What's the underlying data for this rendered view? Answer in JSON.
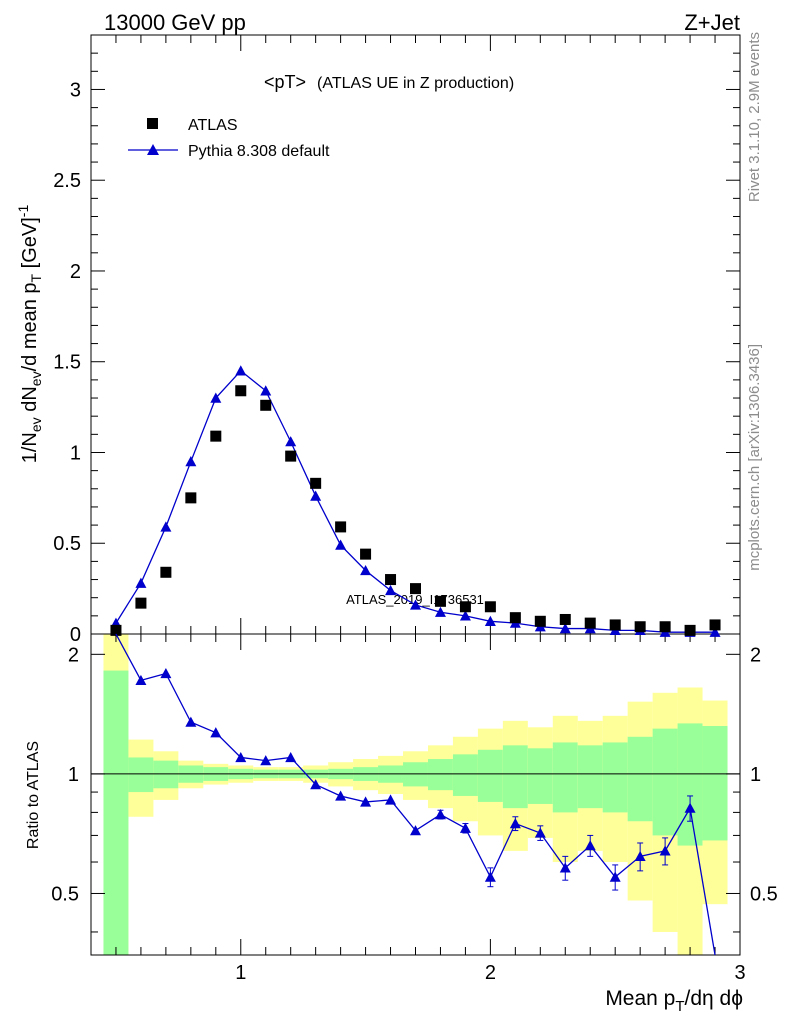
{
  "header": {
    "left": "13000 GeV pp",
    "right": "Z+Jet"
  },
  "plot_title": "<pT>",
  "plot_subtitle": "(ATLAS UE in Z production)",
  "watermark": "ATLAS_2019_I1736531",
  "side_text": {
    "top": "Rivet 3.1.10,  2.9M events",
    "bottom": "mcplots.cern.ch [arXiv:1306.3436]"
  },
  "colors": {
    "mc": "#0000cc",
    "data": "#000000",
    "band_inner": "#99ff99",
    "band_outer": "#ffff99"
  },
  "chart_data": [
    {
      "type": "scatter",
      "panel": "main",
      "ylabel": "1/N_ev dN_ev/d mean p_T [GeV]^-1",
      "xlim": [
        0.4,
        3.0
      ],
      "ylim": [
        0,
        3.3
      ],
      "yticks": [
        0,
        0.5,
        1,
        1.5,
        2,
        2.5,
        3
      ],
      "ytick_labels": [
        "0",
        "0.5",
        "1",
        "1.5",
        "2",
        "2.5",
        "3"
      ],
      "legend_position": "top-left",
      "series": [
        {
          "name": "ATLAS",
          "marker": "square",
          "x": [
            0.5,
            0.6,
            0.7,
            0.8,
            0.9,
            1.0,
            1.1,
            1.2,
            1.3,
            1.4,
            1.5,
            1.6,
            1.7,
            1.8,
            1.9,
            2.0,
            2.1,
            2.2,
            2.3,
            2.4,
            2.5,
            2.6,
            2.7,
            2.8,
            2.9
          ],
          "y": [
            0.02,
            0.17,
            0.34,
            0.75,
            1.09,
            1.34,
            1.26,
            0.98,
            0.83,
            0.59,
            0.44,
            0.3,
            0.25,
            0.18,
            0.15,
            0.15,
            0.09,
            0.07,
            0.08,
            0.06,
            0.05,
            0.04,
            0.04,
            0.02,
            0.05
          ]
        },
        {
          "name": "Pythia 8.308 default",
          "marker": "triangle",
          "x": [
            0.5,
            0.6,
            0.7,
            0.8,
            0.9,
            1.0,
            1.1,
            1.2,
            1.3,
            1.4,
            1.5,
            1.6,
            1.7,
            1.8,
            1.9,
            2.0,
            2.1,
            2.2,
            2.3,
            2.4,
            2.5,
            2.6,
            2.7,
            2.8,
            2.9
          ],
          "y": [
            0.06,
            0.28,
            0.59,
            0.95,
            1.3,
            1.45,
            1.34,
            1.06,
            0.76,
            0.49,
            0.35,
            0.24,
            0.16,
            0.12,
            0.1,
            0.07,
            0.06,
            0.04,
            0.03,
            0.03,
            0.02,
            0.02,
            0.01,
            0.01,
            0.01
          ]
        }
      ]
    },
    {
      "type": "line",
      "panel": "ratio",
      "ylabel": "Ratio to ATLAS",
      "xlabel": "Mean p_T/dη dϕ",
      "xlim": [
        0.4,
        3.0
      ],
      "ylim": [
        0.35,
        2.25
      ],
      "xticks": [
        1,
        2,
        3
      ],
      "xtick_labels": [
        "1",
        "2",
        "3"
      ],
      "yticks": [
        0.5,
        1,
        2
      ],
      "ytick_labels": [
        "0.5",
        "1",
        "2"
      ],
      "reference_line": 1,
      "bands": {
        "x_low": [
          0.45,
          0.55,
          0.65,
          0.75,
          0.85,
          0.95,
          1.05,
          1.15,
          1.25,
          1.35,
          1.45,
          1.55,
          1.65,
          1.75,
          1.85,
          1.95,
          2.05,
          2.15,
          2.25,
          2.35,
          2.45,
          2.55,
          2.65,
          2.75,
          2.85
        ],
        "x_high": [
          0.55,
          0.65,
          0.75,
          0.85,
          0.95,
          1.05,
          1.15,
          1.25,
          1.35,
          1.45,
          1.55,
          1.65,
          1.75,
          1.85,
          1.95,
          2.05,
          2.15,
          2.25,
          2.35,
          2.45,
          2.55,
          2.65,
          2.75,
          2.85,
          2.95
        ],
        "inner_low": [
          0.35,
          0.9,
          0.92,
          0.95,
          0.96,
          0.97,
          0.975,
          0.975,
          0.975,
          0.97,
          0.96,
          0.95,
          0.93,
          0.91,
          0.88,
          0.85,
          0.82,
          0.84,
          0.8,
          0.82,
          0.8,
          0.76,
          0.7,
          0.66,
          0.68
        ],
        "inner_high": [
          1.82,
          1.1,
          1.08,
          1.05,
          1.04,
          1.03,
          1.025,
          1.025,
          1.025,
          1.03,
          1.04,
          1.05,
          1.07,
          1.09,
          1.12,
          1.15,
          1.18,
          1.16,
          1.2,
          1.18,
          1.2,
          1.24,
          1.3,
          1.34,
          1.32
        ],
        "outer_low": [
          0.35,
          0.78,
          0.86,
          0.92,
          0.94,
          0.95,
          0.96,
          0.96,
          0.95,
          0.93,
          0.91,
          0.89,
          0.86,
          0.82,
          0.76,
          0.7,
          0.64,
          0.69,
          0.6,
          0.64,
          0.6,
          0.48,
          0.4,
          0.35,
          0.47
        ],
        "outer_high": [
          2.25,
          1.22,
          1.14,
          1.08,
          1.06,
          1.05,
          1.04,
          1.04,
          1.05,
          1.07,
          1.09,
          1.11,
          1.14,
          1.18,
          1.24,
          1.3,
          1.36,
          1.31,
          1.4,
          1.36,
          1.4,
          1.52,
          1.6,
          1.65,
          1.53
        ]
      },
      "series": [
        {
          "name": "Pythia 8.308 default",
          "marker": "triangle",
          "x": [
            0.5,
            0.6,
            0.7,
            0.8,
            0.9,
            1.0,
            1.1,
            1.2,
            1.3,
            1.4,
            1.5,
            1.6,
            1.7,
            1.8,
            1.9,
            2.0,
            2.1,
            2.2,
            2.3,
            2.4,
            2.5,
            2.6,
            2.7,
            2.8,
            2.9
          ],
          "y": [
            2.4,
            1.72,
            1.79,
            1.35,
            1.27,
            1.1,
            1.08,
            1.1,
            0.94,
            0.88,
            0.85,
            0.86,
            0.72,
            0.79,
            0.73,
            0.55,
            0.75,
            0.71,
            0.58,
            0.66,
            0.55,
            0.62,
            0.64,
            0.82,
            0.3
          ],
          "err": [
            0,
            0,
            0,
            0,
            0,
            0,
            0,
            0,
            0,
            0,
            0,
            0,
            0,
            0.02,
            0.02,
            0.03,
            0.03,
            0.03,
            0.04,
            0.04,
            0.04,
            0.05,
            0.05,
            0.06,
            0.08
          ]
        }
      ]
    }
  ]
}
